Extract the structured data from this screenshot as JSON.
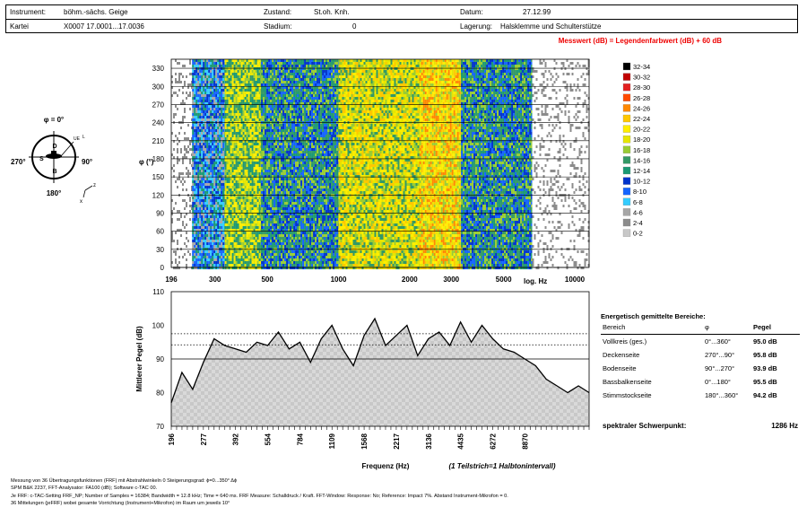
{
  "header": {
    "instrument_label": "Instrument:",
    "instrument_value": "böhm.-sächs. Geige",
    "kartei_label": "Kartei",
    "kartei_value": "X0007 17.0001...17.0036",
    "zustand_label": "Zustand:",
    "zustand_value": "St.oh. Knh.",
    "stadium_label": "Stadium:",
    "stadium_value": "0",
    "datum_label": "Datum:",
    "datum_value": "27.12.99",
    "lagerung_label": "Lagerung:",
    "lagerung_value": "Halsklemme und Schulterstütze"
  },
  "formula": "Messwert (dB) = Legendenfarbwert (dB) + 60 dB",
  "diagram": {
    "phi_top": "φ = 0°",
    "deg_270": "270°",
    "deg_90": "90°",
    "deg_180": "180°",
    "label_d": "D",
    "label_b": "B",
    "label_s": "S",
    "label_ue": "UE",
    "label_l": "L",
    "axis_z": "z",
    "axis_x": "x"
  },
  "colors": {
    "palette": [
      "#000000",
      "#c00000",
      "#e32020",
      "#ff4a00",
      "#ff8800",
      "#ffc800",
      "#ffee00",
      "#e6e600",
      "#99cc33",
      "#339966",
      "#1a9973",
      "#0033cc",
      "#1464ff",
      "#33ccff",
      "#a6a6a6",
      "#8c8c8c",
      "#c8c8c8",
      "#ffffff"
    ]
  },
  "chart_data": [
    {
      "type": "heatmap",
      "xlabel": "log. Hz",
      "ylabel": "φ (°)",
      "x_tick_labels": [
        "196",
        "300",
        "500",
        "1000",
        "2000",
        "3000",
        "5000",
        "10000"
      ],
      "x_tick_values": [
        196,
        300,
        500,
        1000,
        2000,
        3000,
        5000,
        10000
      ],
      "xlim": [
        196,
        11500
      ],
      "xscale": "log",
      "y_tick_labels": [
        "0",
        "30",
        "60",
        "90",
        "120",
        "150",
        "180",
        "210",
        "240",
        "270",
        "300",
        "330"
      ],
      "ylim": [
        0,
        345
      ],
      "legend": [
        "32-34",
        "30-32",
        "28-30",
        "26-28",
        "24-26",
        "22-24",
        "20-22",
        "18-20",
        "16-18",
        "14-16",
        "12-14",
        "10-12",
        "8-10",
        "6-8",
        "4-6",
        "2-4",
        "0-2"
      ],
      "legend_position": "right",
      "column_dominant_levels_dB": [
        {
          "from_Hz": 196,
          "to_Hz": 240,
          "level": "2-4"
        },
        {
          "from_Hz": 240,
          "to_Hz": 330,
          "level": "8-10"
        },
        {
          "from_Hz": 330,
          "to_Hz": 470,
          "level": "16-18"
        },
        {
          "from_Hz": 470,
          "to_Hz": 1000,
          "level": "12-14"
        },
        {
          "from_Hz": 1000,
          "to_Hz": 2200,
          "level": "18-20"
        },
        {
          "from_Hz": 2200,
          "to_Hz": 3300,
          "level": "20-22"
        },
        {
          "from_Hz": 3300,
          "to_Hz": 6600,
          "level": "12-14"
        },
        {
          "from_Hz": 6600,
          "to_Hz": 11500,
          "level": "2-4"
        }
      ]
    },
    {
      "type": "area",
      "xlabel": "Frequenz (Hz)",
      "ylabel": "Mittlerer Pegel (dB)",
      "x_annotation": "(1 Teilstrich=1 Halbtonintervall)",
      "x_tick_labels": [
        "196",
        "277",
        "392",
        "554",
        "784",
        "1109",
        "1568",
        "2217",
        "3136",
        "4435",
        "6272",
        "8870"
      ],
      "y_tick_labels": [
        "70",
        "80",
        "90",
        "100",
        "110"
      ],
      "ylim": [
        70,
        110
      ],
      "dotted_reference_lines_dB": [
        94.2,
        97.5
      ],
      "solid_reference_line_dB": 90,
      "x_semitones": [
        0,
        2,
        4,
        6,
        8,
        10,
        12,
        14,
        16,
        18,
        20,
        22,
        24,
        26,
        28,
        30,
        32,
        34,
        36,
        38,
        40,
        42,
        44,
        46,
        48,
        50,
        52,
        54,
        56,
        58,
        60,
        62,
        64,
        66,
        68,
        70,
        72,
        74,
        76,
        78
      ],
      "values": [
        77,
        86,
        81,
        89,
        96,
        94,
        93,
        92,
        95,
        94,
        98,
        93,
        95,
        89,
        96,
        100,
        93,
        88,
        97,
        102,
        94,
        97,
        100,
        91,
        96,
        98,
        94,
        101,
        95,
        100,
        96,
        93,
        92,
        90,
        88,
        84,
        82,
        80,
        82,
        80
      ]
    }
  ],
  "table": {
    "title": "Energetisch gemittelte Bereiche:",
    "col_bereich": "Bereich",
    "col_phi": "φ",
    "col_pegel": "Pegel",
    "rows": [
      {
        "bereich": "Vollkreis (ges.)",
        "phi": "0°...360°",
        "pegel": "95.0 dB"
      },
      {
        "bereich": "Deckenseite",
        "phi": "270°...90°",
        "pegel": "95.8 dB"
      },
      {
        "bereich": "Bodenseite",
        "phi": "90°...270°",
        "pegel": "93.9 dB"
      },
      {
        "bereich": "Bassbalkenseite",
        "phi": "0°...180°",
        "pegel": "95.5 dB"
      },
      {
        "bereich": "Stimmstockseite",
        "phi": "180°...360°",
        "pegel": "94.2 dB"
      }
    ]
  },
  "spectral": {
    "label": "spektraler Schwerpunkt:",
    "value": "1286 Hz"
  },
  "footer": {
    "line1": "Messung von 36 Übertragungsfunktionen (FRF) mit Abstrahlwinkeln 0 Steigerungsgrad: ϕ=0...350° Δϕ",
    "line2": "SPM B&K 2237, FFT-Analysator: FA100 (dB); Software c-TAC 00.",
    "line3": "Je FRF: c-TAC-Setting FRF_NP; Number of Samples = 16384; Bandwidth = 12.8 kHz; Time = 640 ms. FRF Measure: Schalldruck / Kraft. FFT-Window: Response: No; Reference: Impact 7%. Abstand Instrument-Mikrofon = 0.",
    "line4": "36 Mittelungen (jeFRF) wobei gesamte Vorrichtung (Instrument+Mikrofon) im Raum um jeweils 10°"
  }
}
